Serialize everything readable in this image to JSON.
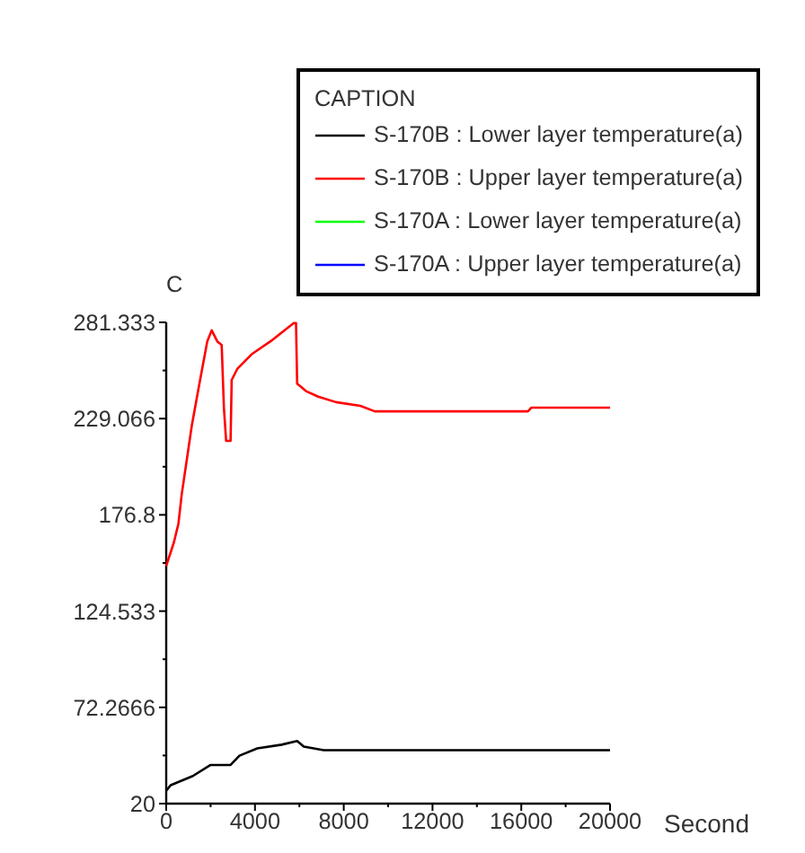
{
  "chart_data": {
    "type": "line",
    "xlabel": "Second",
    "ylabel": "C",
    "legend_title": "CAPTION",
    "legend": "top right",
    "xlim": [
      0,
      20000
    ],
    "ylim": [
      20,
      281.333
    ],
    "xticks": [
      0,
      4000,
      8000,
      12000,
      16000,
      20000
    ],
    "yticks": [
      20,
      72.2666,
      124.533,
      176.8,
      229.066,
      281.333
    ],
    "grid": false,
    "marker": "none",
    "line_style": "solid",
    "series": [
      {
        "name": "S-170B : Lower layer temperature(a)",
        "color": "#000000",
        "x": [
          0,
          200,
          1200,
          2000,
          2900,
          3300,
          4100,
          5200,
          5900,
          6200,
          7100,
          20000
        ],
        "values": [
          27,
          30,
          35,
          41,
          41,
          46,
          50,
          52,
          54,
          51,
          49,
          49
        ]
      },
      {
        "name": "S-170B : Upper layer temperature(a)",
        "color": "#ff0000",
        "x": [
          0,
          350,
          550,
          700,
          1150,
          1450,
          1850,
          2050,
          2300,
          2500,
          2600,
          2700,
          2900,
          2950,
          3200,
          3850,
          4700,
          5750,
          5850,
          5900,
          6300,
          6850,
          7650,
          8750,
          9400,
          16300,
          16450,
          20000
        ],
        "values": [
          149,
          162,
          172,
          188,
          225,
          245,
          271,
          277,
          271,
          269,
          235,
          217,
          217,
          250,
          256,
          264,
          271,
          281,
          281,
          248,
          244,
          241,
          238,
          236,
          233,
          233,
          235,
          235
        ]
      },
      {
        "name": "S-170A : Lower layer temperature(a)",
        "color": "#00ff00"
      },
      {
        "name": "S-170A : Upper layer temperature(a)",
        "color": "#0000ff"
      }
    ]
  }
}
